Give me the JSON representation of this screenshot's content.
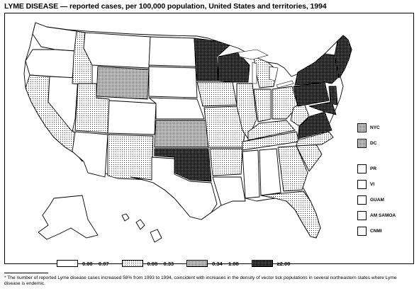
{
  "title": "LYME DISEASE — reported cases, per 100,000 population, United States and territories, 1994",
  "legend": [
    {
      "label": "0.00 – 0.07",
      "pattern": "white"
    },
    {
      "label": "0.08 – 0.33",
      "pattern": "dots"
    },
    {
      "label": "0.34 – 1.08",
      "pattern": "medium"
    },
    {
      "label": "≥2.00",
      "pattern": "dark"
    }
  ],
  "territories": [
    {
      "label": "NYC",
      "pattern": "medium"
    },
    {
      "label": "DC",
      "pattern": "medium"
    },
    {
      "label": "PR",
      "pattern": "white"
    },
    {
      "label": "VI",
      "pattern": "white"
    },
    {
      "label": "GUAM",
      "pattern": "white"
    },
    {
      "label": "AM SAMOA",
      "pattern": "white"
    },
    {
      "label": "CNMI",
      "pattern": "white"
    }
  ],
  "footnote": "* The number of reported Lyme disease cases increased 58% from 1993 to 1994, coincident with increases in the density of vector tick populations in several northeastern states where Lyme disease is endemic.",
  "colors": {
    "line": "#000000",
    "background": "#ffffff",
    "dark": "#6a6a6a",
    "medium": "#b4b4b4",
    "dots": "#dcdcdc"
  }
}
